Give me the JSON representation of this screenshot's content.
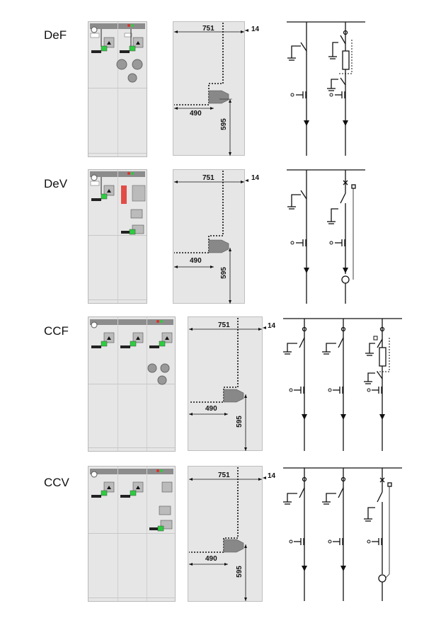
{
  "rows": [
    {
      "label": "DeF",
      "dims": {
        "width": "751",
        "offset": "14",
        "depth": "490",
        "height": "595"
      }
    },
    {
      "label": "DeV",
      "dims": {
        "width": "751",
        "offset": "14",
        "depth": "490",
        "height": "595"
      }
    },
    {
      "label": "CCF",
      "dims": {
        "width": "751",
        "offset": "14",
        "depth": "490",
        "height": "595"
      }
    },
    {
      "label": "CCV",
      "dims": {
        "width": "751",
        "offset": "14",
        "depth": "490",
        "height": "595"
      }
    }
  ],
  "colors": {
    "panel": "#e6e6e6",
    "indicator_green": "#2ecc40",
    "indicator_red": "#e0302a",
    "line": "#111111"
  }
}
